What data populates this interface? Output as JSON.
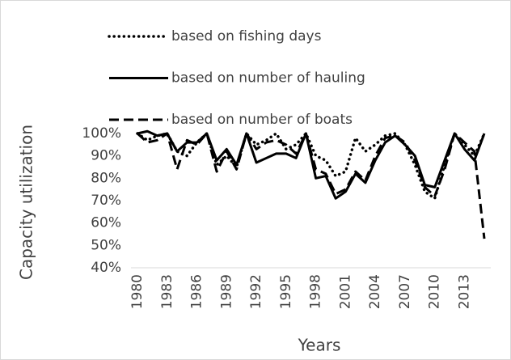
{
  "chart_data": {
    "type": "line",
    "x": [
      1980,
      1981,
      1982,
      1983,
      1984,
      1985,
      1986,
      1987,
      1988,
      1989,
      1990,
      1991,
      1992,
      1993,
      1994,
      1995,
      1996,
      1997,
      1998,
      1999,
      2000,
      2001,
      2002,
      2003,
      2004,
      2005,
      2006,
      2007,
      2008,
      2009,
      2010,
      2011,
      2012,
      2013,
      2014,
      2015
    ],
    "xlim": [
      1980,
      2015
    ],
    "xticks": [
      1980,
      1983,
      1986,
      1989,
      1992,
      1995,
      1998,
      2001,
      2004,
      2007,
      2010,
      2013
    ],
    "ylim": [
      40,
      100
    ],
    "yticks": [
      {
        "value": 40,
        "label": "40%"
      },
      {
        "value": 50,
        "label": "50%"
      },
      {
        "value": 60,
        "label": "60%"
      },
      {
        "value": 70,
        "label": "70%"
      },
      {
        "value": 80,
        "label": "80%"
      },
      {
        "value": 90,
        "label": "90%"
      },
      {
        "value": 100,
        "label": "100%"
      }
    ],
    "xlabel": "Years",
    "ylabel": "Capacity utilization",
    "legend": "top-left",
    "series": [
      {
        "name": "based on fishing days",
        "color": "#000000",
        "line_style": "dotted",
        "values": [
          100,
          97,
          99,
          100,
          92,
          90,
          96,
          100,
          86,
          90,
          85,
          100,
          95,
          97,
          100,
          93,
          95,
          100,
          90,
          88,
          81,
          83,
          98,
          92,
          95,
          99,
          100,
          95,
          86,
          74,
          71,
          86,
          100,
          95,
          90,
          100
        ]
      },
      {
        "name": "based on number of hauling",
        "color": "#000000",
        "line_style": "solid",
        "values": [
          100,
          101,
          99,
          100,
          92,
          96,
          96,
          100,
          88,
          93,
          86,
          100,
          87,
          89,
          91,
          91,
          89,
          100,
          80,
          81,
          71,
          74,
          82,
          78,
          88,
          96,
          99,
          95,
          90,
          77,
          76,
          88,
          100,
          93,
          88,
          100
        ]
      },
      {
        "name": "based on number of boats",
        "color": "#000000",
        "line_style": "dashed",
        "values": [
          100,
          96,
          97,
          100,
          84,
          97,
          95,
          100,
          83,
          92,
          84,
          100,
          93,
          96,
          97,
          95,
          91,
          100,
          84,
          82,
          73,
          75,
          83,
          79,
          90,
          98,
          99,
          96,
          88,
          76,
          72,
          84,
          100,
          96,
          92,
          53
        ]
      }
    ]
  }
}
